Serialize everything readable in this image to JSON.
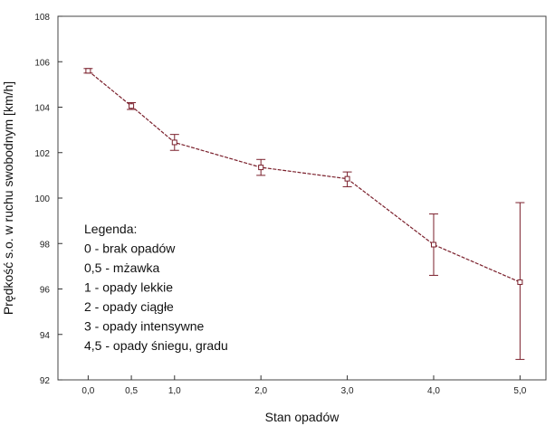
{
  "chart_data": {
    "type": "line",
    "xlabel": "Stan opadów",
    "ylabel": "Prędkość s.o. w ruchu swobodnym [km/h]",
    "ylim": [
      92,
      108
    ],
    "xlim": [
      -0.35,
      5.3
    ],
    "y_ticks": [
      "92",
      "94",
      "96",
      "98",
      "100",
      "102",
      "104",
      "106",
      "108"
    ],
    "x_ticks": [
      {
        "value": 0.0,
        "label": "0,0"
      },
      {
        "value": 0.5,
        "label": "0,5"
      },
      {
        "value": 1.0,
        "label": "1,0"
      },
      {
        "value": 2.0,
        "label": "2,0"
      },
      {
        "value": 3.0,
        "label": "3,0"
      },
      {
        "value": 4.0,
        "label": "4,0"
      },
      {
        "value": 5.0,
        "label": "5,0"
      }
    ],
    "grid": false,
    "legend_position": "bottom-left",
    "series": [
      {
        "x": [
          0.0,
          0.5,
          1.0,
          2.0,
          3.0,
          4.0,
          5.0
        ],
        "y": [
          105.6,
          104.05,
          102.45,
          101.35,
          100.85,
          97.95,
          96.3
        ],
        "err_low": [
          105.5,
          103.9,
          102.1,
          101.0,
          100.5,
          96.6,
          92.9
        ],
        "err_high": [
          105.7,
          104.2,
          102.8,
          101.7,
          101.15,
          99.3,
          99.8
        ]
      }
    ],
    "legend": {
      "title": "Legenda:",
      "items": [
        "0 - brak opadów",
        "0,5 - mżawka",
        "1 - opady lekkie",
        "2 - opady ciągłe",
        "3 - opady intensywne",
        "4,5 - opady śniegu, gradu"
      ]
    },
    "colors": {
      "line": "#7a1f2b",
      "axis": "#333333",
      "frame": "#444444"
    }
  }
}
